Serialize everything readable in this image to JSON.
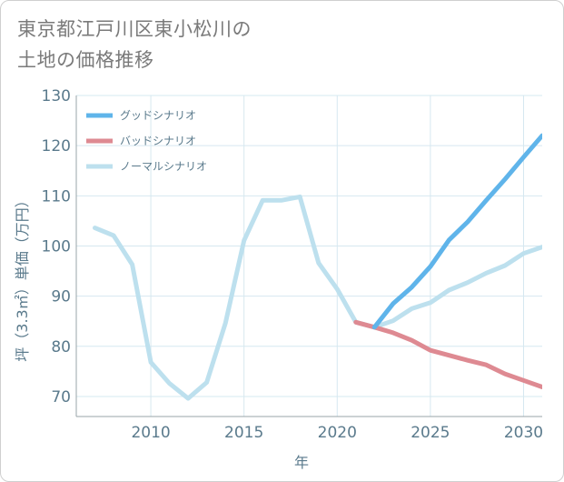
{
  "title_lines": [
    "東京都江戸川区東小松川の",
    "土地の価格推移"
  ],
  "chart_data": {
    "type": "line",
    "title": "東京都江戸川区東小松川の土地の価格推移",
    "xlabel": "年",
    "ylabel": "坪（3.3㎡）単価（万円）",
    "xlim": [
      2006,
      2031
    ],
    "ylim": [
      66,
      130
    ],
    "x_ticks": [
      2010,
      2015,
      2020,
      2025,
      2030
    ],
    "y_ticks": [
      70,
      80,
      90,
      100,
      110,
      120,
      130
    ],
    "grid": true,
    "legend_position": "top-left",
    "series": [
      {
        "name": "グッドシナリオ",
        "color": "#5fb4ea",
        "x": [
          2022,
          2023,
          2024,
          2025,
          2026,
          2027,
          2028,
          2029,
          2030,
          2031
        ],
        "y": [
          83.8,
          88.5,
          91.8,
          95.9,
          101.2,
          104.8,
          109.1,
          113.3,
          117.7,
          122.0
        ]
      },
      {
        "name": "バッドシナリオ",
        "color": "#de8a92",
        "x": [
          2021,
          2022,
          2023,
          2024,
          2025,
          2026,
          2027,
          2028,
          2029,
          2030,
          2031
        ],
        "y": [
          84.8,
          83.8,
          82.7,
          81.2,
          79.2,
          78.2,
          77.2,
          76.3,
          74.5,
          73.2,
          71.9
        ]
      },
      {
        "name": "ノーマルシナリオ",
        "color": "#bde0ee",
        "x": [
          2007,
          2008,
          2009,
          2010,
          2011,
          2012,
          2013,
          2014,
          2015,
          2016,
          2017,
          2018,
          2019,
          2020,
          2021,
          2022,
          2023,
          2024,
          2025,
          2026,
          2027,
          2028,
          2029,
          2030,
          2031
        ],
        "y": [
          103.6,
          102.1,
          96.3,
          76.8,
          72.6,
          69.6,
          72.8,
          84.6,
          101.1,
          109.1,
          109.1,
          109.8,
          96.6,
          91.4,
          84.8,
          83.8,
          85.1,
          87.5,
          88.7,
          91.2,
          92.7,
          94.6,
          96.1,
          98.5,
          99.8
        ]
      }
    ]
  }
}
